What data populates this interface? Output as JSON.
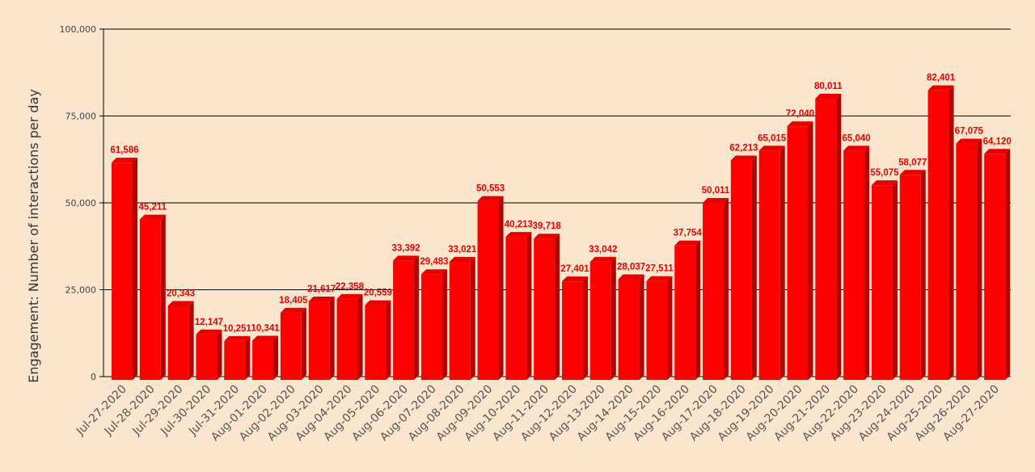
{
  "colors": {
    "background": "#fbe5cd",
    "bar_front": "#ff0000",
    "bar_side": "#b30000",
    "bar_top": "#e60000",
    "data_label": "#ee0000",
    "gridline": "#000000"
  },
  "chart_data": {
    "type": "bar",
    "style": "3d",
    "title": "",
    "xlabel": "",
    "ylabel": "Engagement: Number of interactions per day",
    "ylim": [
      0,
      100000
    ],
    "yticks": [
      0,
      25000,
      50000,
      75000,
      100000
    ],
    "ytick_labels": [
      "0",
      "25,000",
      "50,000",
      "75,000",
      "100,000"
    ],
    "grid": true,
    "legend": "none",
    "categories": [
      "Jul-27-2020",
      "Jul-28-2020",
      "Jul-29-2020",
      "Jul-30-2020",
      "Jul-31-2020",
      "Aug-01-2020",
      "Aug-02-2020",
      "Aug-03-2020",
      "Aug-04-2020",
      "Aug-05-2020",
      "Aug-06-2020",
      "Aug-07-2020",
      "Aug-08-2020",
      "Aug-09-2020",
      "Aug-10-2020",
      "Aug-11-2020",
      "Aug-12-2020",
      "Aug-13-2020",
      "Aug-14-2020",
      "Aug-15-2020",
      "Aug-16-2020",
      "Aug-17-2020",
      "Aug-18-2020",
      "Aug-19-2020",
      "Aug-20-2020",
      "Aug-21-2020",
      "Aug-22-2020",
      "Aug-23-2020",
      "Aug-24-2020",
      "Aug-25-2020",
      "Aug-26-2020",
      "Aug-27-2020"
    ],
    "values": [
      61586,
      45211,
      20343,
      12147,
      10251,
      10341,
      18405,
      21617,
      22358,
      20559,
      33392,
      29483,
      33021,
      50553,
      40213,
      39718,
      27401,
      33042,
      28037,
      27511,
      37754,
      50011,
      62213,
      65015,
      72040,
      80011,
      65040,
      55075,
      58077,
      82401,
      67075,
      64120
    ],
    "value_labels": [
      "61,586",
      "45,211",
      "20,343",
      "12,147",
      "10,251",
      "10,341",
      "18,405",
      "21,617",
      "22,358",
      "20,559",
      "33,392",
      "29,483",
      "33,021",
      "50,553",
      "40,213",
      "39,718",
      "27,401",
      "33,042",
      "28,037",
      "27,511",
      "37,754",
      "50,011",
      "62,213",
      "65,015",
      "72,040",
      "80,011",
      "65,040",
      "55,075",
      "58,077",
      "82,401",
      "67,075",
      "64,120"
    ]
  }
}
